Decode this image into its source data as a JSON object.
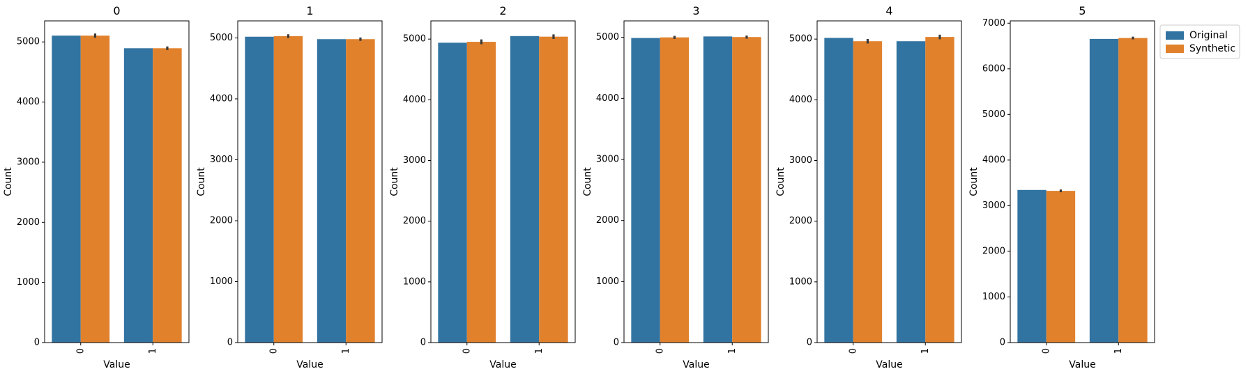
{
  "chart_data": [
    {
      "type": "bar",
      "title": "0",
      "xlabel": "Value",
      "ylabel": "Count",
      "categories": [
        "0",
        "1"
      ],
      "ylim": [
        0,
        5350
      ],
      "yticks": [
        0,
        1000,
        2000,
        3000,
        4000,
        5000
      ],
      "series": [
        {
          "name": "Original",
          "values": [
            5105,
            4895
          ],
          "err": [
            0,
            0
          ]
        },
        {
          "name": "Synthetic",
          "values": [
            5105,
            4895
          ],
          "err": [
            70,
            60
          ]
        }
      ]
    },
    {
      "type": "bar",
      "title": "1",
      "xlabel": "Value",
      "ylabel": "Count",
      "categories": [
        "0",
        "1"
      ],
      "ylim": [
        0,
        5280
      ],
      "yticks": [
        0,
        1000,
        2000,
        3000,
        4000,
        5000
      ],
      "series": [
        {
          "name": "Original",
          "values": [
            5020,
            4980
          ],
          "err": [
            0,
            0
          ]
        },
        {
          "name": "Synthetic",
          "values": [
            5030,
            4980
          ],
          "err": [
            60,
            55
          ]
        }
      ]
    },
    {
      "type": "bar",
      "title": "2",
      "xlabel": "Value",
      "ylabel": "Count",
      "categories": [
        "0",
        "1"
      ],
      "ylim": [
        0,
        5300
      ],
      "yticks": [
        0,
        1000,
        2000,
        3000,
        4000,
        5000
      ],
      "series": [
        {
          "name": "Original",
          "values": [
            4940,
            5050
          ],
          "err": [
            0,
            0
          ]
        },
        {
          "name": "Synthetic",
          "values": [
            4955,
            5040
          ],
          "err": [
            80,
            75
          ]
        }
      ]
    },
    {
      "type": "bar",
      "title": "3",
      "xlabel": "Value",
      "ylabel": "Count",
      "categories": [
        "0",
        "1"
      ],
      "ylim": [
        0,
        5270
      ],
      "yticks": [
        0,
        1000,
        2000,
        3000,
        4000,
        5000
      ],
      "series": [
        {
          "name": "Original",
          "values": [
            4990,
            5015
          ],
          "err": [
            0,
            0
          ]
        },
        {
          "name": "Synthetic",
          "values": [
            5000,
            5005
          ],
          "err": [
            50,
            50
          ]
        }
      ]
    },
    {
      "type": "bar",
      "title": "4",
      "xlabel": "Value",
      "ylabel": "Count",
      "categories": [
        "0",
        "1"
      ],
      "ylim": [
        0,
        5300
      ],
      "yticks": [
        0,
        1000,
        2000,
        3000,
        4000,
        5000
      ],
      "series": [
        {
          "name": "Original",
          "values": [
            5020,
            4965
          ],
          "err": [
            0,
            0
          ]
        },
        {
          "name": "Synthetic",
          "values": [
            4965,
            5035
          ],
          "err": [
            75,
            75
          ]
        }
      ]
    },
    {
      "type": "bar",
      "title": "5",
      "xlabel": "Value",
      "ylabel": "Count",
      "categories": [
        "0",
        "1"
      ],
      "ylim": [
        0,
        7050
      ],
      "yticks": [
        0,
        1000,
        2000,
        3000,
        4000,
        5000,
        6000,
        7000
      ],
      "series": [
        {
          "name": "Original",
          "values": [
            3345,
            6655
          ],
          "err": [
            0,
            0
          ]
        },
        {
          "name": "Synthetic",
          "values": [
            3325,
            6675
          ],
          "err": [
            60,
            60
          ]
        }
      ],
      "legend": {
        "position": "upper-right-outside",
        "entries": [
          "Original",
          "Synthetic"
        ]
      }
    }
  ],
  "colors": {
    "Original": "#3274a1",
    "Synthetic": "#e1812c",
    "errorbar": "#3a3a3a",
    "axis": "#000000"
  }
}
